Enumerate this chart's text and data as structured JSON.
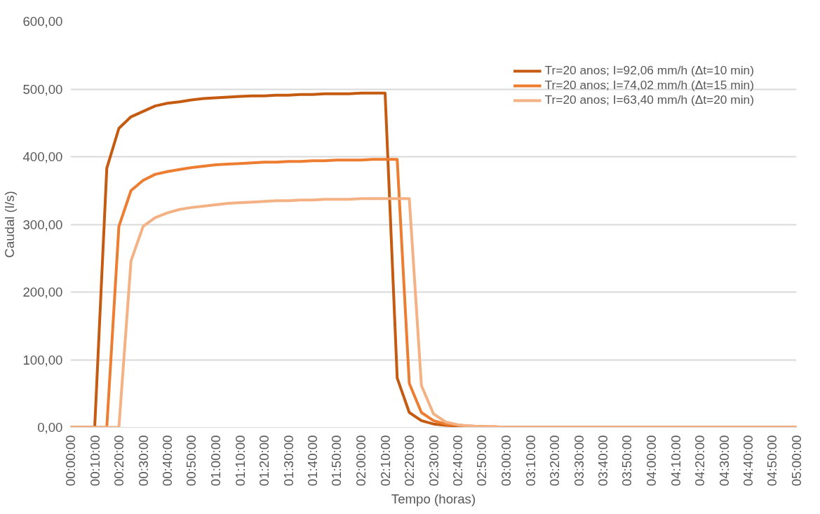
{
  "chart_data": {
    "type": "line",
    "xlabel": "Tempo (horas)",
    "ylabel": "Caudal (l/s)",
    "x": [
      0,
      0.0833,
      0.1667,
      0.25,
      0.3333,
      0.4167,
      0.5,
      0.5833,
      0.6667,
      0.75,
      0.8333,
      0.9167,
      1,
      1.0833,
      1.1667,
      1.25,
      1.3333,
      1.4167,
      1.5,
      1.5833,
      1.6667,
      1.75,
      1.8333,
      1.9167,
      2,
      2.0833,
      2.1667,
      2.25,
      2.3333,
      2.4167,
      2.5,
      2.5833,
      2.6667,
      2.75,
      2.8333,
      2.9167,
      3,
      3.0833,
      3.1667,
      3.25,
      3.3333,
      3.4167,
      3.5,
      3.5833,
      3.6667,
      3.75,
      3.8333,
      3.9167,
      4,
      4.0833,
      4.1667,
      4.25,
      4.3333,
      4.4167,
      4.5,
      4.5833,
      4.6667,
      4.75,
      4.8333,
      4.9167,
      5
    ],
    "series": [
      {
        "name": "Tr=20 anos; I=92,06 mm/h (Δt=10 min)",
        "color": "#c55a11",
        "values": [
          0,
          0,
          0,
          383,
          442,
          459,
          467,
          475,
          479,
          481,
          484,
          486,
          487,
          488,
          489,
          490,
          490,
          491,
          491,
          492,
          492,
          493,
          493,
          493,
          494,
          494,
          494,
          73,
          22,
          10,
          5,
          3,
          2,
          1,
          1,
          0,
          0,
          0,
          0,
          0,
          0,
          0,
          0,
          0,
          0,
          0,
          0,
          0,
          0,
          0,
          0,
          0,
          0,
          0,
          0,
          0,
          0,
          0,
          0,
          0,
          0
        ]
      },
      {
        "name": "Tr=20 anos; I=74,02 mm/h (Δt=15 min)",
        "color": "#ed7d31",
        "values": [
          0,
          0,
          0,
          0,
          297,
          350,
          365,
          374,
          378,
          381,
          384,
          386,
          388,
          389,
          390,
          391,
          392,
          392,
          393,
          393,
          394,
          394,
          395,
          395,
          395,
          396,
          396,
          396,
          65,
          22,
          10,
          5,
          3,
          2,
          1,
          1,
          0,
          0,
          0,
          0,
          0,
          0,
          0,
          0,
          0,
          0,
          0,
          0,
          0,
          0,
          0,
          0,
          0,
          0,
          0,
          0,
          0,
          0,
          0,
          0,
          0
        ]
      },
      {
        "name": "Tr=20 anos; I=63,40 mm/h (Δt=20 min)",
        "color": "#f4b183",
        "values": [
          0,
          0,
          0,
          0,
          0,
          246,
          297,
          310,
          317,
          322,
          325,
          327,
          329,
          331,
          332,
          333,
          334,
          335,
          335,
          336,
          336,
          337,
          337,
          337,
          338,
          338,
          338,
          338,
          338,
          62,
          20,
          8,
          4,
          2,
          1,
          1,
          0,
          0,
          0,
          0,
          0,
          0,
          0,
          0,
          0,
          0,
          0,
          0,
          0,
          0,
          0,
          0,
          0,
          0,
          0,
          0,
          0,
          0,
          0,
          0,
          0
        ]
      }
    ],
    "xlim": [
      0,
      5
    ],
    "ylim": [
      0,
      600
    ],
    "xticks": [
      {
        "value": 0,
        "label": "00:00:00"
      },
      {
        "value": 0.1667,
        "label": "00:10:00"
      },
      {
        "value": 0.3333,
        "label": "00:20:00"
      },
      {
        "value": 0.5,
        "label": "00:30:00"
      },
      {
        "value": 0.6667,
        "label": "00:40:00"
      },
      {
        "value": 0.8333,
        "label": "00:50:00"
      },
      {
        "value": 1,
        "label": "01:00:00"
      },
      {
        "value": 1.1667,
        "label": "01:10:00"
      },
      {
        "value": 1.3333,
        "label": "01:20:00"
      },
      {
        "value": 1.5,
        "label": "01:30:00"
      },
      {
        "value": 1.6667,
        "label": "01:40:00"
      },
      {
        "value": 1.8333,
        "label": "01:50:00"
      },
      {
        "value": 2,
        "label": "02:00:00"
      },
      {
        "value": 2.1667,
        "label": "02:10:00"
      },
      {
        "value": 2.3333,
        "label": "02:20:00"
      },
      {
        "value": 2.5,
        "label": "02:30:00"
      },
      {
        "value": 2.6667,
        "label": "02:40:00"
      },
      {
        "value": 2.8333,
        "label": "02:50:00"
      },
      {
        "value": 3,
        "label": "03:00:00"
      },
      {
        "value": 3.1667,
        "label": "03:10:00"
      },
      {
        "value": 3.3333,
        "label": "03:20:00"
      },
      {
        "value": 3.5,
        "label": "03:30:00"
      },
      {
        "value": 3.6667,
        "label": "03:40:00"
      },
      {
        "value": 3.8333,
        "label": "03:50:00"
      },
      {
        "value": 4,
        "label": "04:00:00"
      },
      {
        "value": 4.1667,
        "label": "04:10:00"
      },
      {
        "value": 4.3333,
        "label": "04:20:00"
      },
      {
        "value": 4.5,
        "label": "04:30:00"
      },
      {
        "value": 4.6667,
        "label": "04:40:00"
      },
      {
        "value": 4.8333,
        "label": "04:50:00"
      },
      {
        "value": 5,
        "label": "05:00:00"
      }
    ],
    "yticks": [
      {
        "value": 0,
        "label": "0,00"
      },
      {
        "value": 100,
        "label": "100,00"
      },
      {
        "value": 200,
        "label": "200,00"
      },
      {
        "value": 300,
        "label": "300,00"
      },
      {
        "value": 400,
        "label": "400,00"
      },
      {
        "value": 500,
        "label": "500,00"
      },
      {
        "value": 600,
        "label": "600,00"
      }
    ],
    "grid": "y",
    "legend": "top right",
    "marker": "none",
    "line_style": "solid"
  }
}
